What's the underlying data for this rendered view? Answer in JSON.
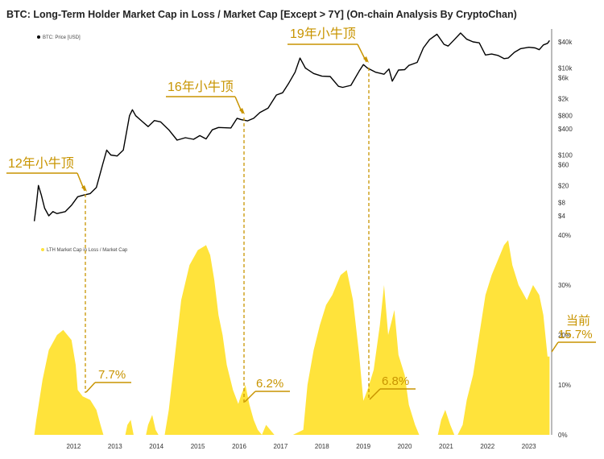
{
  "chart_data": [
    {
      "type": "line",
      "title": "BTC: Long-Term Holder Market Cap in Loss / Market Cap [Except > 7Y] (On-chain Analysis By CryptoChan)",
      "legend": [
        "BTC: Price [USD]"
      ],
      "y_scale": "log",
      "y_ticks": [
        "$40k",
        "$10k",
        "$6k",
        "$2k",
        "$800",
        "$400",
        "$100",
        "$60",
        "$20",
        "$8",
        "$4"
      ],
      "x_ticks": [
        "2012",
        "2013",
        "2014",
        "2015",
        "2016",
        "2017",
        "2018",
        "2019",
        "2020",
        "2021",
        "2022",
        "2023"
      ],
      "series": [
        {
          "name": "BTC: Price [USD]",
          "color": "#000000",
          "points": [
            [
              2011.55,
              3
            ],
            [
              2011.6,
              7
            ],
            [
              2011.65,
              20
            ],
            [
              2011.72,
              12
            ],
            [
              2011.8,
              6
            ],
            [
              2011.9,
              4
            ],
            [
              2012.0,
              5
            ],
            [
              2012.1,
              4.5
            ],
            [
              2012.3,
              5
            ],
            [
              2012.45,
              7
            ],
            [
              2012.6,
              11
            ],
            [
              2012.75,
              12
            ],
            [
              2012.9,
              13
            ],
            [
              2013.05,
              18
            ],
            [
              2013.2,
              60
            ],
            [
              2013.3,
              130
            ],
            [
              2013.4,
              100
            ],
            [
              2013.55,
              95
            ],
            [
              2013.7,
              130
            ],
            [
              2013.85,
              800
            ],
            [
              2013.92,
              1100
            ],
            [
              2014.0,
              800
            ],
            [
              2014.15,
              600
            ],
            [
              2014.3,
              450
            ],
            [
              2014.45,
              620
            ],
            [
              2014.6,
              580
            ],
            [
              2014.8,
              380
            ],
            [
              2015.0,
              220
            ],
            [
              2015.2,
              250
            ],
            [
              2015.4,
              230
            ],
            [
              2015.55,
              280
            ],
            [
              2015.7,
              235
            ],
            [
              2015.85,
              380
            ],
            [
              2016.0,
              430
            ],
            [
              2016.3,
              420
            ],
            [
              2016.45,
              700
            ],
            [
              2016.55,
              650
            ],
            [
              2016.7,
              610
            ],
            [
              2016.85,
              700
            ],
            [
              2017.0,
              950
            ],
            [
              2017.2,
              1200
            ],
            [
              2017.4,
              2400
            ],
            [
              2017.55,
              2700
            ],
            [
              2017.7,
              4500
            ],
            [
              2017.85,
              8000
            ],
            [
              2017.97,
              17000
            ],
            [
              2018.1,
              10000
            ],
            [
              2018.3,
              7500
            ],
            [
              2018.5,
              6500
            ],
            [
              2018.7,
              6400
            ],
            [
              2018.9,
              3800
            ],
            [
              2019.0,
              3600
            ],
            [
              2019.2,
              4000
            ],
            [
              2019.4,
              8500
            ],
            [
              2019.5,
              12000
            ],
            [
              2019.6,
              10000
            ],
            [
              2019.8,
              8000
            ],
            [
              2020.0,
              7200
            ],
            [
              2020.12,
              9500
            ],
            [
              2020.2,
              5000
            ],
            [
              2020.35,
              9000
            ],
            [
              2020.5,
              9200
            ],
            [
              2020.6,
              11500
            ],
            [
              2020.8,
              13500
            ],
            [
              2020.95,
              29000
            ],
            [
              2021.1,
              45000
            ],
            [
              2021.28,
              60000
            ],
            [
              2021.45,
              35000
            ],
            [
              2021.55,
              32000
            ],
            [
              2021.7,
              45000
            ],
            [
              2021.85,
              64000
            ],
            [
              2022.0,
              46000
            ],
            [
              2022.15,
              40000
            ],
            [
              2022.3,
              38000
            ],
            [
              2022.45,
              20000
            ],
            [
              2022.6,
              21000
            ],
            [
              2022.75,
              19500
            ],
            [
              2022.9,
              16500
            ],
            [
              2023.0,
              17000
            ],
            [
              2023.15,
              23000
            ],
            [
              2023.3,
              28000
            ],
            [
              2023.5,
              30000
            ],
            [
              2023.65,
              29000
            ],
            [
              2023.75,
              26500
            ],
            [
              2023.85,
              34000
            ],
            [
              2023.95,
              37000
            ],
            [
              2024.0,
              43000
            ]
          ]
        }
      ]
    },
    {
      "type": "area",
      "legend": [
        "LTH Market Cap in Loss / Market Cap"
      ],
      "y_ticks": [
        "40%",
        "30%",
        "20%",
        "10%",
        "0%"
      ],
      "ylim": [
        0,
        40
      ],
      "x_ticks": [
        "2012",
        "2013",
        "2014",
        "2015",
        "2016",
        "2017",
        "2018",
        "2019",
        "2020",
        "2021",
        "2022",
        "2023"
      ],
      "series": [
        {
          "name": "LTH Market Cap in Loss / Market Cap",
          "color": "#ffe33b",
          "points": [
            [
              2011.55,
              0
            ],
            [
              2011.6,
              3
            ],
            [
              2011.75,
              11
            ],
            [
              2011.9,
              17
            ],
            [
              2012.1,
              20
            ],
            [
              2012.25,
              21
            ],
            [
              2012.45,
              19
            ],
            [
              2012.55,
              14
            ],
            [
              2012.6,
              9
            ],
            [
              2012.72,
              7.7
            ],
            [
              2012.9,
              7
            ],
            [
              2013.05,
              5
            ],
            [
              2013.15,
              2
            ],
            [
              2013.22,
              0
            ],
            [
              2013.75,
              0
            ],
            [
              2013.8,
              2
            ],
            [
              2013.88,
              3
            ],
            [
              2013.95,
              0
            ],
            [
              2014.25,
              0
            ],
            [
              2014.3,
              2
            ],
            [
              2014.4,
              4
            ],
            [
              2014.48,
              1
            ],
            [
              2014.55,
              0
            ],
            [
              2014.7,
              0
            ],
            [
              2014.8,
              5
            ],
            [
              2014.95,
              16
            ],
            [
              2015.1,
              27
            ],
            [
              2015.3,
              34
            ],
            [
              2015.5,
              37
            ],
            [
              2015.7,
              38
            ],
            [
              2015.8,
              36
            ],
            [
              2015.9,
              31
            ],
            [
              2016.0,
              24
            ],
            [
              2016.1,
              20
            ],
            [
              2016.2,
              14
            ],
            [
              2016.35,
              9
            ],
            [
              2016.48,
              6.2
            ],
            [
              2016.55,
              8
            ],
            [
              2016.65,
              10
            ],
            [
              2016.75,
              6
            ],
            [
              2016.85,
              3
            ],
            [
              2016.95,
              1
            ],
            [
              2017.05,
              0
            ],
            [
              2017.15,
              2
            ],
            [
              2017.25,
              1
            ],
            [
              2017.35,
              0
            ],
            [
              2017.75,
              0
            ],
            [
              2017.8,
              0
            ],
            [
              2018.05,
              1
            ],
            [
              2018.15,
              10
            ],
            [
              2018.3,
              17
            ],
            [
              2018.45,
              22
            ],
            [
              2018.6,
              26
            ],
            [
              2018.75,
              28
            ],
            [
              2018.95,
              32
            ],
            [
              2019.1,
              33
            ],
            [
              2019.25,
              27
            ],
            [
              2019.4,
              16
            ],
            [
              2019.5,
              6.8
            ],
            [
              2019.6,
              9
            ],
            [
              2019.75,
              13
            ],
            [
              2019.9,
              22
            ],
            [
              2020.0,
              30
            ],
            [
              2020.1,
              20
            ],
            [
              2020.25,
              25
            ],
            [
              2020.35,
              16
            ],
            [
              2020.5,
              12
            ],
            [
              2020.6,
              6
            ],
            [
              2020.75,
              2
            ],
            [
              2020.85,
              0
            ],
            [
              2021.3,
              0
            ],
            [
              2021.38,
              3
            ],
            [
              2021.48,
              5
            ],
            [
              2021.6,
              2
            ],
            [
              2021.7,
              0
            ],
            [
              2021.78,
              0
            ],
            [
              2021.9,
              2
            ],
            [
              2022.0,
              7
            ],
            [
              2022.15,
              12
            ],
            [
              2022.3,
              20
            ],
            [
              2022.45,
              28
            ],
            [
              2022.6,
              32
            ],
            [
              2022.75,
              35
            ],
            [
              2022.9,
              38
            ],
            [
              2023.0,
              39
            ],
            [
              2023.1,
              34
            ],
            [
              2023.25,
              30
            ],
            [
              2023.45,
              27
            ],
            [
              2023.6,
              30
            ],
            [
              2023.75,
              28
            ],
            [
              2023.85,
              24
            ],
            [
              2023.95,
              15.7
            ],
            [
              2024.0,
              15.7
            ]
          ]
        }
      ]
    }
  ],
  "annotations": {
    "tops": [
      {
        "label": "12年小牛顶",
        "value_label": "7.7%",
        "x": 2012.72
      },
      {
        "label": "16年小牛顶",
        "value_label": "6.2%",
        "x": 2016.48
      },
      {
        "label": "19年小牛顶",
        "value_label": "6.8%",
        "x": 2019.5
      }
    ],
    "current": {
      "label": "当前",
      "value_label": "15.7%"
    }
  },
  "colors": {
    "accent": "#c89400",
    "area": "#ffe33b",
    "price_line": "#000000"
  }
}
